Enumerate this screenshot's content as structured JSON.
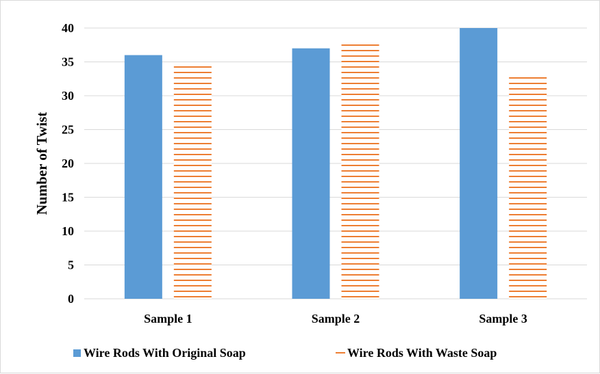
{
  "chart_data": {
    "type": "bar",
    "categories": [
      "Sample 1",
      "Sample 2",
      "Sample 3"
    ],
    "series": [
      {
        "name": "Wire Rods With Original Soap",
        "values": [
          36,
          37,
          40
        ],
        "color": "#5b9bd5",
        "fill": "solid"
      },
      {
        "name": "Wire Rods With Waste Soap",
        "values": [
          34.7,
          38,
          32.9
        ],
        "color": "#ed7d31",
        "fill": "horizontal-stripes"
      }
    ],
    "title": "",
    "xlabel": "",
    "ylabel": "Number of Twist",
    "ylim": [
      0,
      40
    ],
    "yticks": [
      0,
      5,
      10,
      15,
      20,
      25,
      30,
      35,
      40
    ],
    "grid": true,
    "legend_position": "bottom"
  }
}
